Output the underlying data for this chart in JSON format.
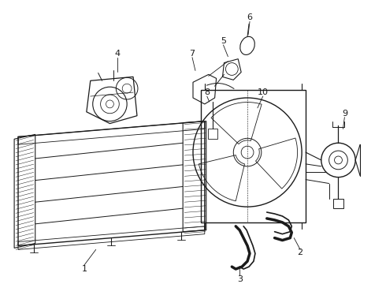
{
  "bg_color": "#ffffff",
  "line_color": "#1a1a1a",
  "fig_width": 4.9,
  "fig_height": 3.6,
  "dpi": 100,
  "font_size_label": 8
}
